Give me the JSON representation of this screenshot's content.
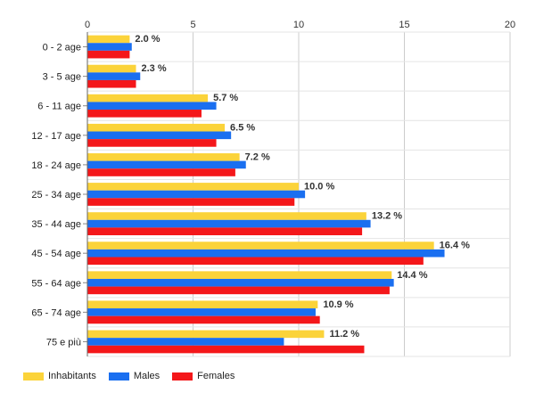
{
  "chart_data": {
    "type": "bar",
    "orientation": "horizontal",
    "categories": [
      "0 - 2 age",
      "3 - 5 age",
      "6 - 11 age",
      "12 - 17 age",
      "18 - 24 age",
      "25 - 34 age",
      "35 - 44 age",
      "45 - 54 age",
      "55 - 64 age",
      "65 - 74 age",
      "75 e più"
    ],
    "series": [
      {
        "name": "Inhabitants",
        "color": "#fbd33a",
        "values": [
          2.0,
          2.3,
          5.7,
          6.5,
          7.2,
          10.0,
          13.2,
          16.4,
          14.4,
          10.9,
          11.2
        ],
        "labels": [
          "2.0 %",
          "2.3 %",
          "5.7 %",
          "6.5 %",
          "7.2 %",
          "10.0 %",
          "13.2 %",
          "16.4 %",
          "14.4 %",
          "10.9 %",
          "11.2 %"
        ]
      },
      {
        "name": "Males",
        "color": "#1a6ff0",
        "values": [
          2.1,
          2.5,
          6.1,
          6.8,
          7.5,
          10.3,
          13.4,
          16.9,
          14.5,
          10.8,
          9.3
        ]
      },
      {
        "name": "Females",
        "color": "#f4171a",
        "values": [
          2.0,
          2.3,
          5.4,
          6.1,
          7.0,
          9.8,
          13.0,
          15.9,
          14.3,
          11.0,
          13.1
        ]
      }
    ],
    "xlim": [
      0,
      20
    ],
    "x_ticks": [
      "0",
      "5",
      "10",
      "15",
      "20"
    ],
    "grid": true,
    "legend_position": "bottom-left"
  }
}
